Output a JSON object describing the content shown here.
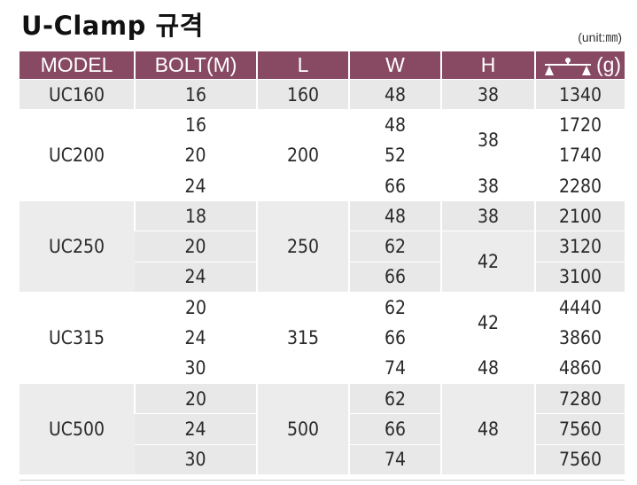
{
  "title": "U-Clamp 규격",
  "unit": "(unit:㎜)",
  "headers": [
    "MODEL",
    "BOLT(M)",
    "L",
    "W",
    "H",
    "(g)"
  ],
  "weight_icon": "scale-icon",
  "header_color": "#874a62",
  "rows": [
    {
      "model": "UC160",
      "bolt": "16",
      "l": "160",
      "w": "48",
      "h": "38",
      "g": "1340"
    },
    {
      "model": "UC200",
      "bolt": "16",
      "l": "200",
      "w": "48",
      "h": "38",
      "g": "1720"
    },
    {
      "bolt": "20",
      "w": "52",
      "g": "1740"
    },
    {
      "bolt": "24",
      "w": "66",
      "h": "38",
      "g": "2280"
    },
    {
      "model": "UC250",
      "bolt": "18",
      "l": "250",
      "w": "48",
      "h": "38",
      "g": "2100"
    },
    {
      "bolt": "20",
      "w": "62",
      "h": "42",
      "g": "3120"
    },
    {
      "bolt": "24",
      "w": "66",
      "g": "3100"
    },
    {
      "model": "UC315",
      "bolt": "20",
      "l": "315",
      "w": "62",
      "h": "42",
      "g": "4440"
    },
    {
      "bolt": "24",
      "w": "66",
      "g": "3860"
    },
    {
      "bolt": "30",
      "w": "74",
      "h": "48",
      "g": "4860"
    },
    {
      "model": "UC500",
      "bolt": "20",
      "l": "500",
      "w": "62",
      "h": "48",
      "g": "7280"
    },
    {
      "bolt": "24",
      "w": "66",
      "g": "7560"
    },
    {
      "bolt": "30",
      "w": "74",
      "g": "7560"
    }
  ]
}
